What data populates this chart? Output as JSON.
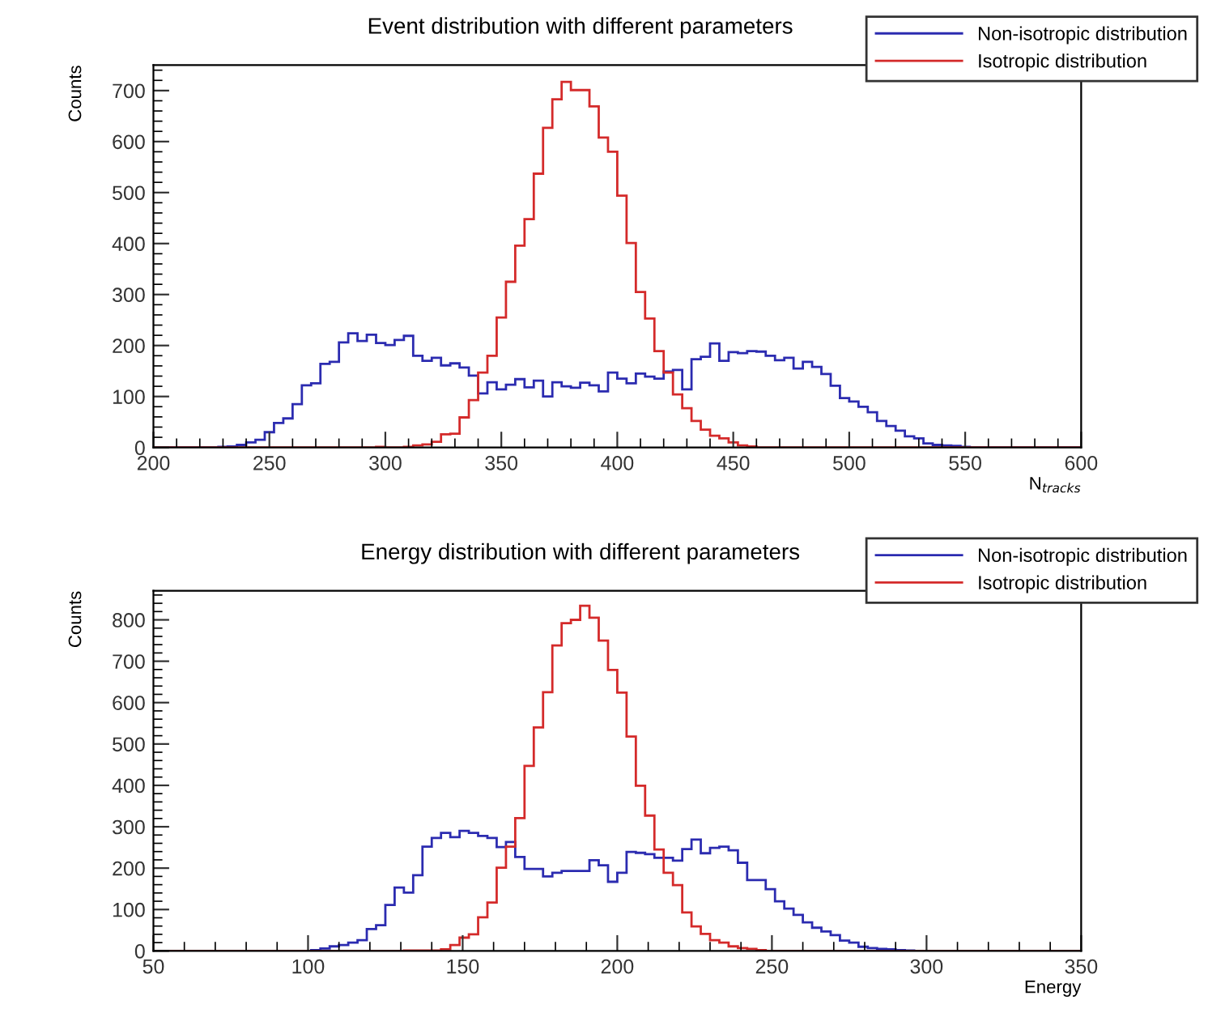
{
  "chart_data": [
    {
      "type": "histogram",
      "title": "Event distribution with different parameters",
      "xlabel": "N$_{tracks}$",
      "ylabel": "Counts",
      "bins": [
        200,
        204,
        208,
        212,
        216,
        220,
        224,
        228,
        232,
        236,
        240,
        244,
        248,
        252,
        256,
        260,
        264,
        268,
        272,
        276,
        280,
        284,
        288,
        292,
        296,
        300,
        304,
        308,
        312,
        316,
        320,
        324,
        328,
        332,
        336,
        340,
        344,
        348,
        352,
        356,
        360,
        364,
        368,
        372,
        376,
        380,
        384,
        388,
        392,
        396,
        400,
        404,
        408,
        412,
        416,
        420,
        424,
        428,
        432,
        436,
        440,
        444,
        448,
        452,
        456,
        460,
        464,
        468,
        472,
        476,
        480,
        484,
        488,
        492,
        496,
        500,
        504,
        508,
        512,
        516,
        520,
        524,
        528,
        532,
        536,
        540,
        544,
        548,
        552,
        556,
        560,
        564,
        568,
        572,
        576,
        580,
        584,
        588,
        592,
        596,
        600
      ],
      "series": [
        {
          "name": "Non-isotropic distribution",
          "color": "#2b2bb0",
          "values": [
            0,
            0,
            0,
            0,
            0,
            0,
            0,
            1,
            2,
            5,
            10,
            15,
            30,
            48,
            57,
            85,
            122,
            126,
            164,
            168,
            206,
            224,
            209,
            221,
            205,
            201,
            211,
            219,
            180,
            170,
            176,
            161,
            165,
            157,
            141,
            106,
            128,
            114,
            123,
            134,
            118,
            131,
            100,
            128,
            120,
            117,
            127,
            122,
            110,
            147,
            135,
            126,
            145,
            139,
            135,
            149,
            152,
            114,
            173,
            178,
            204,
            170,
            187,
            185,
            189,
            188,
            180,
            171,
            176,
            155,
            168,
            158,
            144,
            121,
            97,
            90,
            80,
            69,
            52,
            42,
            33,
            22,
            18,
            8,
            5,
            4,
            3,
            1,
            0,
            0,
            0,
            0,
            0,
            0,
            0,
            0,
            0,
            0,
            0,
            0
          ]
        },
        {
          "name": "Isotropic distribution",
          "color": "#d42a2a",
          "values": [
            0,
            0,
            0,
            0,
            0,
            0,
            0,
            0,
            0,
            0,
            0,
            0,
            0,
            0,
            0,
            0,
            0,
            0,
            0,
            0,
            0,
            0,
            0,
            0,
            1,
            0,
            0,
            1,
            4,
            6,
            11,
            26,
            27,
            59,
            93,
            147,
            180,
            255,
            325,
            396,
            448,
            537,
            627,
            683,
            717,
            701,
            701,
            669,
            608,
            580,
            494,
            401,
            305,
            253,
            189,
            147,
            104,
            77,
            52,
            35,
            23,
            18,
            10,
            4,
            2,
            0,
            0,
            0,
            0,
            0,
            0,
            0,
            0,
            0,
            0,
            0,
            0,
            0,
            0,
            0,
            0,
            0,
            0,
            0,
            0,
            0,
            0,
            0,
            0,
            0,
            0,
            0,
            0,
            0,
            0,
            0,
            0,
            0,
            0,
            0
          ]
        }
      ],
      "xlim": [
        200,
        600
      ],
      "xticks": [
        200,
        250,
        300,
        350,
        400,
        450,
        500,
        550,
        600
      ],
      "ylim": [
        0,
        750
      ],
      "yticks": [
        0,
        100,
        200,
        300,
        400,
        500,
        600,
        700
      ],
      "legend": "top right",
      "grid": false
    },
    {
      "type": "histogram",
      "title": "Energy distribution with different parameters",
      "xlabel": "Energy",
      "ylabel": "Counts",
      "bins": [
        50,
        53,
        56,
        59,
        62,
        65,
        68,
        71,
        74,
        77,
        80,
        83,
        86,
        89,
        92,
        95,
        98,
        101,
        104,
        107,
        110,
        113,
        116,
        119,
        122,
        125,
        128,
        131,
        134,
        137,
        140,
        143,
        146,
        149,
        152,
        155,
        158,
        161,
        164,
        167,
        170,
        173,
        176,
        179,
        182,
        185,
        188,
        191,
        194,
        197,
        200,
        203,
        206,
        209,
        212,
        215,
        218,
        221,
        224,
        227,
        230,
        233,
        236,
        239,
        242,
        245,
        248,
        251,
        254,
        257,
        260,
        263,
        266,
        269,
        272,
        275,
        278,
        281,
        284,
        287,
        290,
        293,
        296,
        299,
        302,
        305,
        308,
        311,
        314,
        317,
        320,
        323,
        326,
        329,
        332,
        335,
        338,
        341,
        344,
        347,
        350
      ],
      "series": [
        {
          "name": "Non-isotropic distribution",
          "color": "#2b2bb0",
          "values": [
            0,
            0,
            0,
            0,
            0,
            0,
            0,
            0,
            0,
            0,
            0,
            0,
            0,
            0,
            0,
            0,
            0,
            2,
            6,
            11,
            14,
            20,
            26,
            53,
            62,
            111,
            153,
            141,
            183,
            252,
            273,
            285,
            275,
            290,
            285,
            278,
            273,
            251,
            263,
            227,
            198,
            198,
            180,
            189,
            193,
            193,
            193,
            219,
            207,
            167,
            189,
            239,
            237,
            234,
            225,
            225,
            218,
            246,
            269,
            236,
            249,
            252,
            243,
            213,
            171,
            171,
            149,
            120,
            102,
            87,
            69,
            56,
            47,
            38,
            25,
            20,
            10,
            7,
            5,
            4,
            2,
            1,
            0,
            0,
            0,
            0,
            0,
            0,
            0,
            0,
            0,
            0,
            0,
            0,
            0,
            0,
            0,
            0,
            0,
            0
          ]
        },
        {
          "name": "Isotropic distribution",
          "color": "#d42a2a",
          "values": [
            0,
            0,
            0,
            0,
            0,
            0,
            0,
            0,
            0,
            0,
            0,
            0,
            0,
            0,
            0,
            0,
            0,
            0,
            0,
            0,
            0,
            0,
            0,
            0,
            0,
            0,
            0,
            1,
            1,
            1,
            1,
            4,
            14,
            32,
            40,
            81,
            117,
            201,
            252,
            321,
            447,
            540,
            625,
            738,
            792,
            800,
            834,
            805,
            750,
            679,
            624,
            518,
            399,
            327,
            245,
            189,
            159,
            93,
            59,
            41,
            26,
            20,
            11,
            7,
            5,
            2,
            0,
            0,
            0,
            0,
            0,
            0,
            0,
            0,
            0,
            0,
            0,
            0,
            0,
            0,
            0,
            0,
            0,
            0,
            0,
            0,
            0,
            0,
            0,
            0,
            0,
            0,
            0,
            0,
            0,
            0,
            0,
            0,
            0,
            0
          ]
        }
      ],
      "xlim": [
        50,
        350
      ],
      "xticks": [
        50,
        100,
        150,
        200,
        250,
        300,
        350
      ],
      "ylim": [
        0,
        870
      ],
      "yticks": [
        0,
        100,
        200,
        300,
        400,
        500,
        600,
        700,
        800
      ],
      "legend": "top right",
      "grid": false
    }
  ]
}
